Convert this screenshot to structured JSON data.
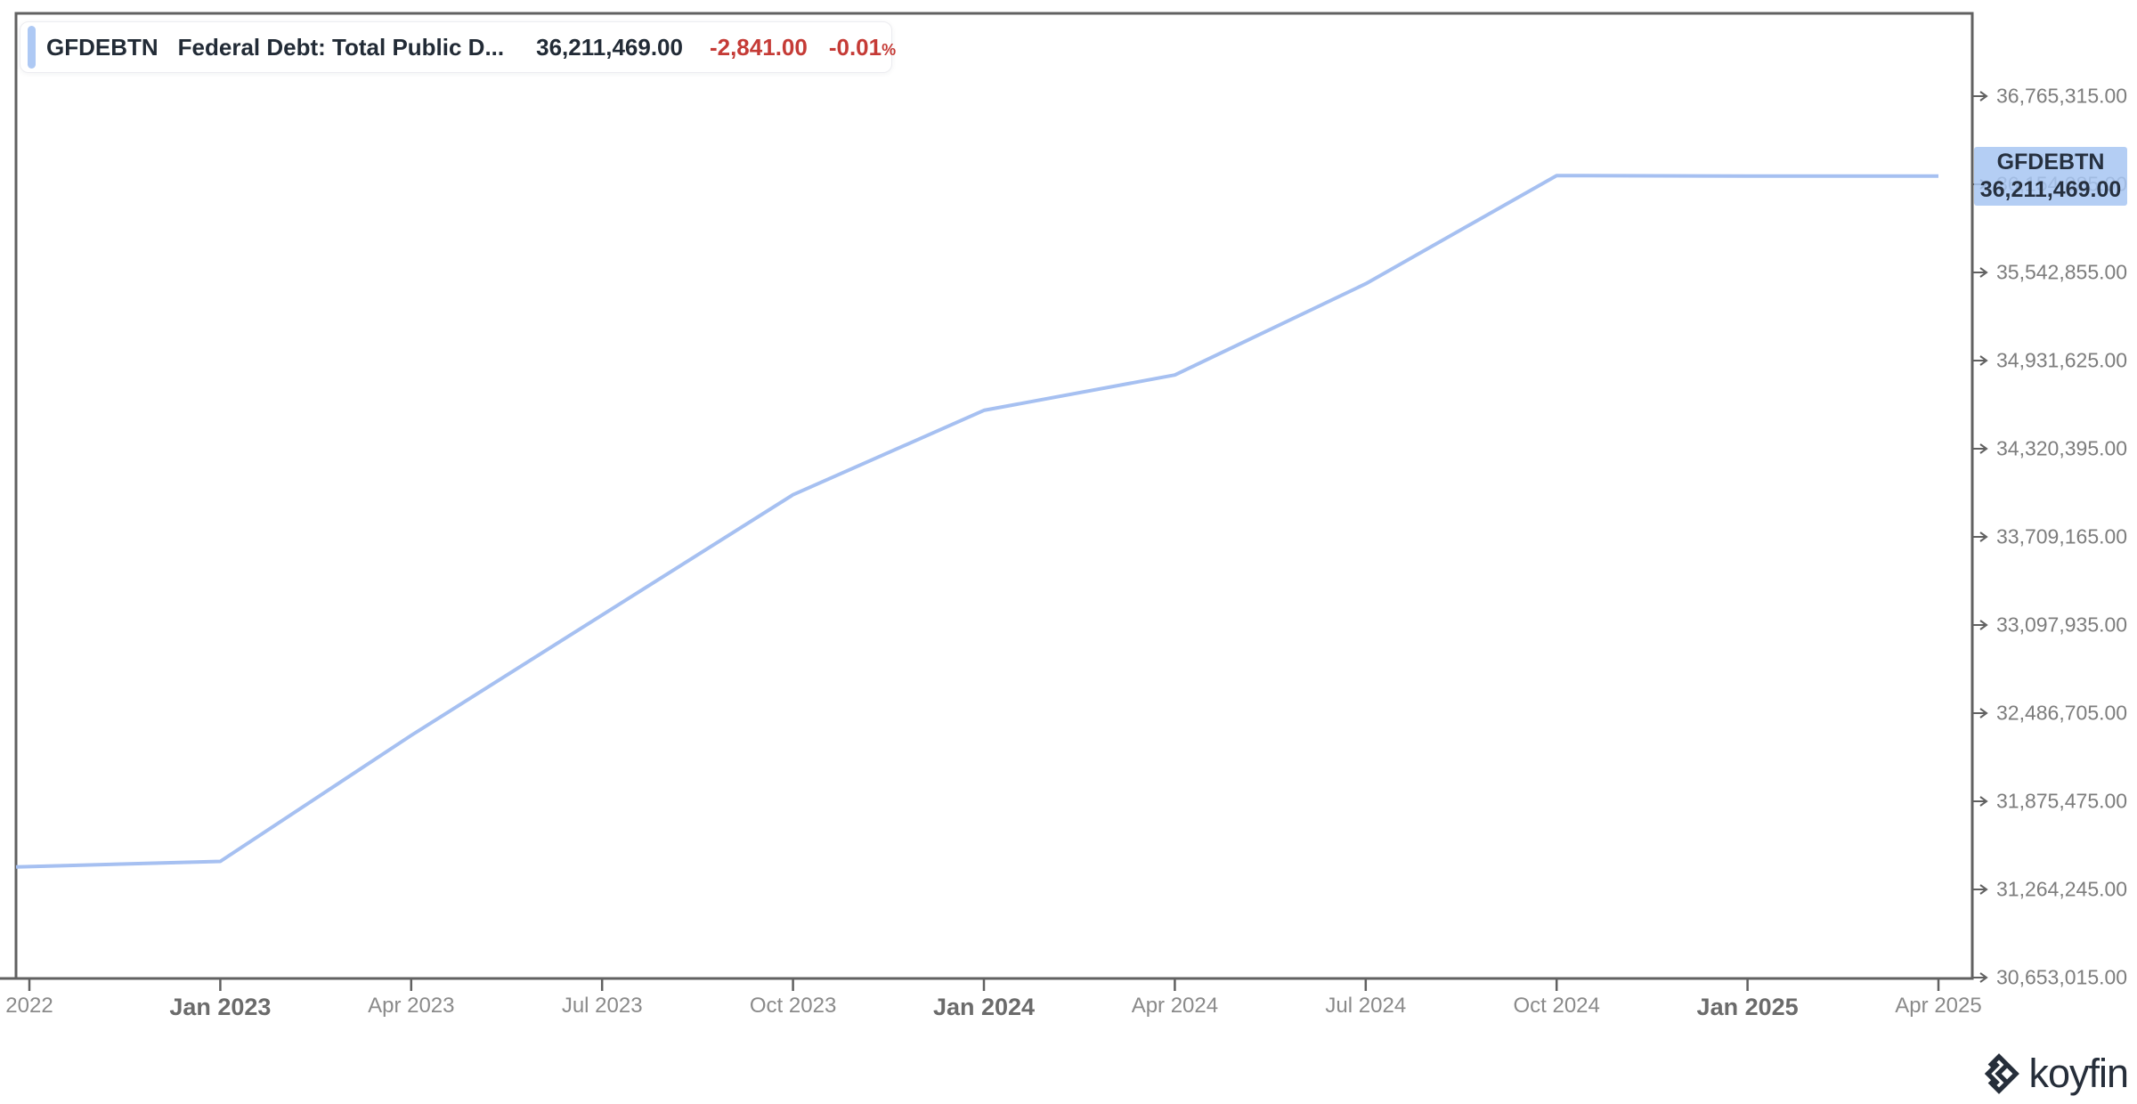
{
  "legend": {
    "ticker": "GFDEBTN",
    "name": "Federal Debt: Total Public D...",
    "value": "36,211,469.00",
    "change": "-2,841.00",
    "change_pct": "-0.01",
    "pct_symbol": "%"
  },
  "price_label": {
    "ticker": "GFDEBTN",
    "value": "36,211,469.00"
  },
  "watermark": {
    "label": "koyfin"
  },
  "colors": {
    "line": "#a6c0f1",
    "badge_bg": "#a7c5f0",
    "accent_bar": "#aec9f4",
    "negative": "#c53b36",
    "axis": "#616161",
    "y_label": "#7d7d7d",
    "x_label": "#8a8a8a",
    "x_label_bold": "#6b6b6b",
    "text_dark": "#222b36",
    "logo": "#262e3a"
  },
  "chart_data": {
    "type": "line",
    "title": "GFDEBTN Federal Debt: Total Public Debt",
    "grid": false,
    "legend_position": "top-left",
    "ylim": [
      30653015,
      36765315
    ],
    "y_tick_step": 611230,
    "y_ticks": [
      "36,765,315.00",
      "36,154,085.00",
      "35,542,855.00",
      "34,931,625.00",
      "34,320,395.00",
      "33,709,165.00",
      "33,097,935.00",
      "32,486,705.00",
      "31,875,475.00",
      "31,264,245.00",
      "30,653,015.00"
    ],
    "x_ticks": [
      {
        "label": "2022",
        "bold": false
      },
      {
        "label": "Jan 2023",
        "bold": true
      },
      {
        "label": "Apr 2023",
        "bold": false
      },
      {
        "label": "Jul 2023",
        "bold": false
      },
      {
        "label": "Oct 2023",
        "bold": false
      },
      {
        "label": "Jan 2024",
        "bold": true
      },
      {
        "label": "Apr 2024",
        "bold": false
      },
      {
        "label": "Jul 2024",
        "bold": false
      },
      {
        "label": "Oct 2024",
        "bold": false
      },
      {
        "label": "Jan 2025",
        "bold": true
      },
      {
        "label": "Apr 2025",
        "bold": false
      }
    ],
    "series": [
      {
        "name": "GFDEBTN",
        "x": [
          "Oct 2022",
          "Jan 2023",
          "Apr 2023",
          "Jul 2023",
          "Oct 2023",
          "Jan 2024",
          "Apr 2024",
          "Jul 2024",
          "Oct 2024",
          "Jan 2025",
          "Apr 2025"
        ],
        "values": [
          31419689,
          31458438,
          32332274,
          33167334,
          34001494,
          34586470,
          34831634,
          35464674,
          36214310,
          36211469,
          36211469
        ]
      }
    ],
    "last_value": 36211469,
    "last_change": -2841,
    "last_change_pct": -0.01
  }
}
